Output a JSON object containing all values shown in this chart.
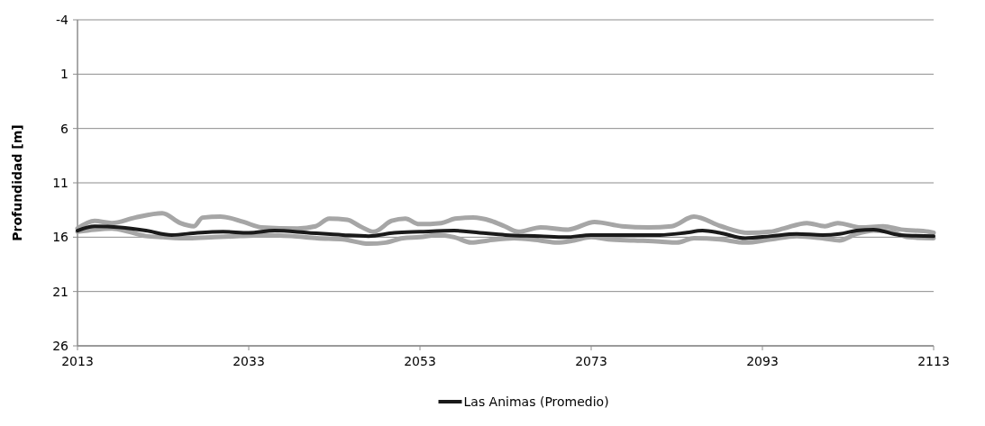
{
  "chart_data": {
    "type": "line",
    "ylabel": "Profundidad [m]",
    "xlim": [
      2013,
      2113
    ],
    "xticks": [
      2013,
      2033,
      2053,
      2073,
      2093,
      2113
    ],
    "ylim": [
      26,
      -4
    ],
    "yticks": [
      -4,
      1,
      6,
      11,
      16,
      21,
      26
    ],
    "grid": "y",
    "legend": "bottom",
    "series": [
      {
        "color": "#a6a6a6",
        "x": [
          2013,
          2015,
          2017,
          2019.7,
          2022.9,
          2025,
          2026.6,
          2027.6,
          2029.7,
          2032.4,
          2034.5,
          2038.7,
          2040.8,
          2042.4,
          2044.5,
          2046,
          2047.6,
          2049.7,
          2051.3,
          2052.9,
          2055.5,
          2057.1,
          2059.2,
          2061.3,
          2062.9,
          2064.5,
          2067.1,
          2070.3,
          2073.4,
          2076.6,
          2079.7,
          2082.4,
          2085,
          2088.2,
          2091.3,
          2093.9,
          2095.5,
          2098.2,
          2100.3,
          2101.8,
          2104.5,
          2107.1,
          2109.2,
          2112.4,
          2113
        ],
        "values": [
          15.2,
          14.5,
          14.7,
          14.2,
          13.8,
          14.7,
          15,
          14.2,
          14.1,
          14.6,
          15.1,
          15.2,
          15,
          14.3,
          14.4,
          15,
          15.5,
          14.5,
          14.3,
          14.8,
          14.7,
          14.3,
          14.2,
          14.5,
          15,
          15.5,
          15.1,
          15.3,
          14.6,
          15,
          15.1,
          15,
          14.1,
          15,
          15.6,
          15.5,
          15.2,
          14.7,
          15,
          14.7,
          15.1,
          15,
          15.3,
          15.5,
          15.6
        ]
      },
      {
        "color": "#a6a6a6",
        "x": [
          2013,
          2015,
          2017,
          2019,
          2021,
          2023,
          2026,
          2029,
          2032,
          2035,
          2038,
          2041,
          2044,
          2047,
          2049,
          2051,
          2053,
          2055,
          2057,
          2059,
          2061,
          2064,
          2067,
          2069,
          2071,
          2073,
          2075,
          2078,
          2081,
          2083,
          2085,
          2088,
          2091,
          2094,
          2097,
          2100,
          2102,
          2104,
          2106,
          2108,
          2110,
          2113
        ],
        "values": [
          15.5,
          15.3,
          15.2,
          15.5,
          15.9,
          16,
          16.1,
          16,
          15.9,
          15.8,
          15.9,
          16.1,
          16.2,
          16.6,
          16.5,
          16.1,
          16,
          15.8,
          16,
          16.5,
          16.3,
          16.1,
          16.3,
          16.5,
          16.3,
          16,
          16.2,
          16.3,
          16.4,
          16.5,
          16.1,
          16.2,
          16.5,
          16.2,
          15.9,
          16.1,
          16.3,
          15.7,
          15.4,
          15.5,
          16,
          16.1
        ]
      },
      {
        "name": "Las Animas (Promedio)",
        "color": "#1a1a1a",
        "x": [
          2013,
          2015,
          2018,
          2021,
          2024,
          2027,
          2030,
          2033,
          2036,
          2040,
          2044,
          2047,
          2050,
          2053,
          2057,
          2060,
          2063,
          2067,
          2070,
          2073,
          2077,
          2081,
          2084,
          2086,
          2088,
          2091,
          2094,
          2097,
          2100,
          2102,
          2104,
          2106,
          2109,
          2113
        ],
        "values": [
          15.4,
          15,
          15.1,
          15.4,
          15.8,
          15.6,
          15.5,
          15.6,
          15.4,
          15.6,
          15.8,
          15.9,
          15.6,
          15.5,
          15.4,
          15.6,
          15.8,
          15.9,
          16,
          15.8,
          15.8,
          15.8,
          15.6,
          15.4,
          15.6,
          16.1,
          15.9,
          15.7,
          15.8,
          15.7,
          15.4,
          15.3,
          15.8,
          15.9
        ]
      }
    ]
  }
}
